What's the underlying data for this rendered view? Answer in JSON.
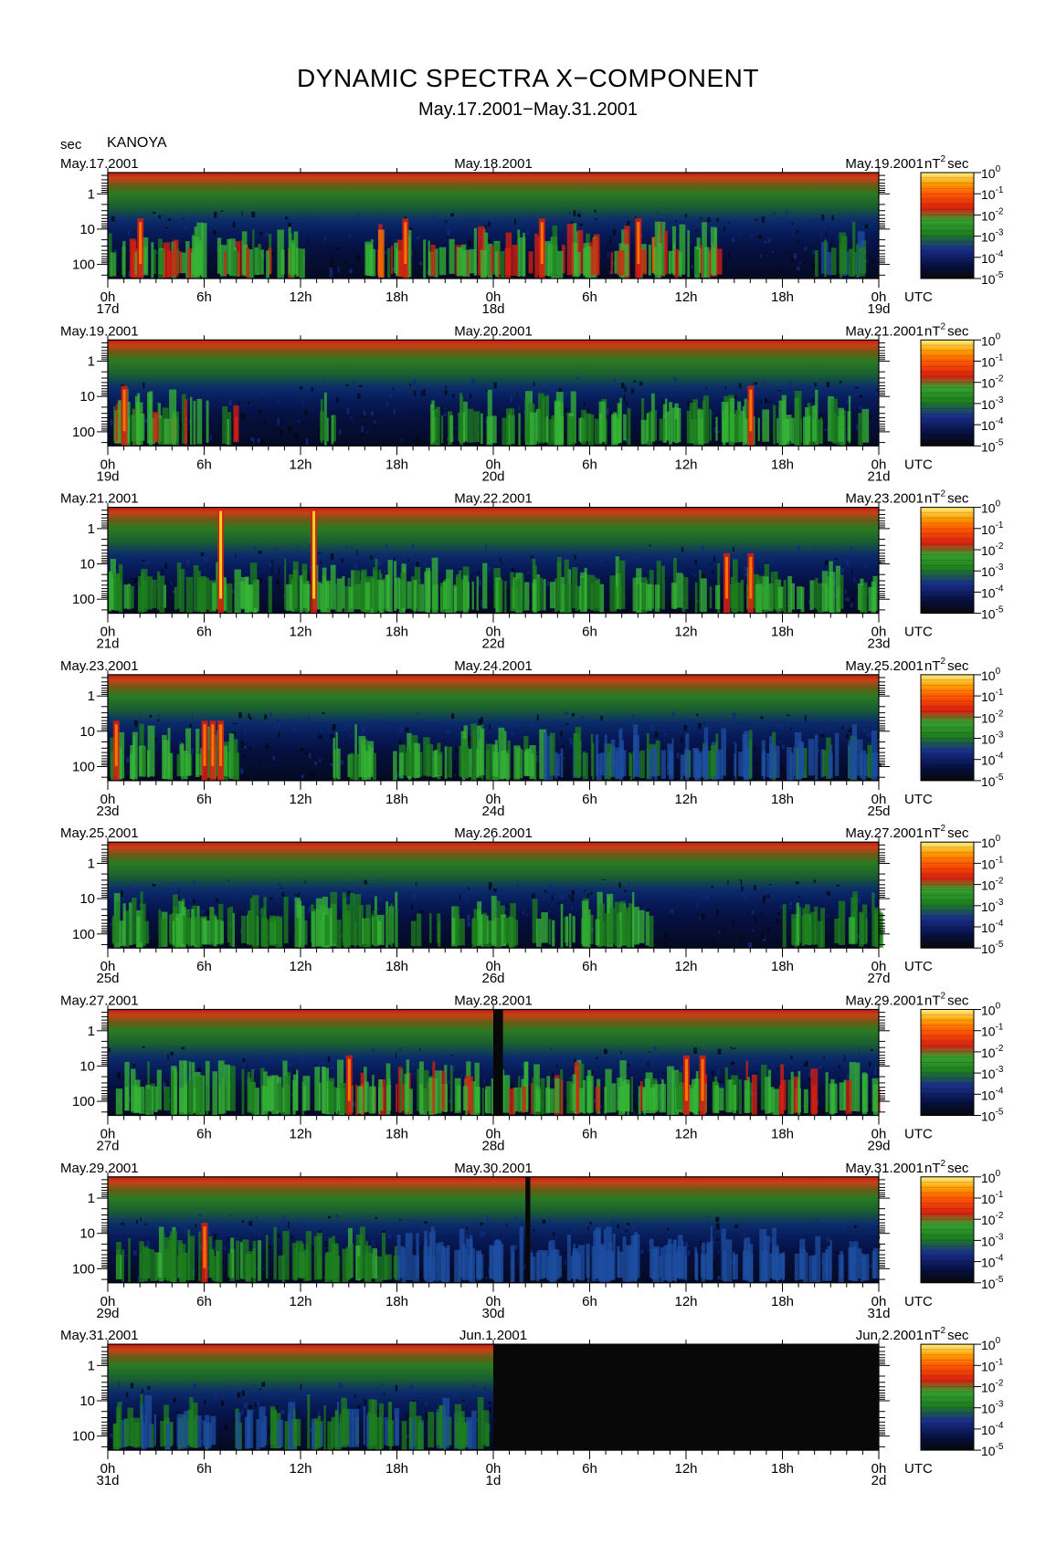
{
  "title": "DYNAMIC SPECTRA X−COMPONENT",
  "subtitle": "May.17.2001−May.31.2001",
  "unit_label": "sec",
  "station": "KANOYA",
  "y_tick_labels": [
    "1",
    "10",
    "100"
  ],
  "x_tick_labels": [
    "0h",
    "6h",
    "12h",
    "18h",
    "0h",
    "6h",
    "12h",
    "18h",
    "0h"
  ],
  "x_axis_unit": "UTC",
  "colorbar": {
    "unit_base": "nT",
    "unit_exp": "2",
    "unit_suffix": "sec",
    "tick_base": "10",
    "tick_exponents": [
      "0",
      "-1",
      "-2",
      "-3",
      "-4",
      "-5"
    ]
  },
  "colors": {
    "noise_black": "#080808",
    "deep_blue": "#07125a",
    "navy": "#061040",
    "green": "#1e7f1e",
    "bright_green": "#35b535",
    "red": "#d92010",
    "orange": "#ff7a00",
    "yellow": "#ffe020"
  },
  "chart_data": {
    "type": "heatmap",
    "x_unit": "UTC hours (2-day window per panel)",
    "y_unit": "period (sec), log scale, 0.25–250",
    "z_unit": "nT^2 sec, log scale 1e-5 to 1e0",
    "panels": [
      {
        "left_date": "May.17.2001",
        "mid_date": "May.18.2001",
        "right_date": "May.19.2001",
        "day_labels": [
          "17d",
          "18d",
          "19d"
        ],
        "activity": [
          [
            0,
            12,
            0.7
          ],
          [
            16,
            38,
            0.75
          ],
          [
            44,
            47,
            0.45
          ]
        ],
        "bursts": [
          [
            2.0,
            0.8
          ],
          [
            18.5,
            0.7
          ],
          [
            27.0,
            0.8
          ],
          [
            33.0,
            0.7
          ]
        ],
        "gaps": []
      },
      {
        "left_date": "May.19.2001",
        "mid_date": "May.20.2001",
        "right_date": "May.21.2001",
        "day_labels": [
          "19d",
          "20d",
          "21d"
        ],
        "activity": [
          [
            0,
            8,
            0.7
          ],
          [
            13,
            14,
            0.55
          ],
          [
            20,
            47,
            0.6
          ]
        ],
        "bursts": [
          [
            1.0,
            0.8
          ],
          [
            40.0,
            0.65
          ]
        ],
        "gaps": []
      },
      {
        "left_date": "May.21.2001",
        "mid_date": "May.22.2001",
        "right_date": "May.23.2001",
        "day_labels": [
          "21d",
          "22d",
          "23d"
        ],
        "activity": [
          [
            0,
            6,
            0.5
          ],
          [
            6,
            48,
            0.6
          ]
        ],
        "bursts": [
          [
            7.0,
            1.0
          ],
          [
            12.8,
            1.0
          ],
          [
            38.5,
            0.8
          ],
          [
            40.0,
            0.8
          ]
        ],
        "gaps": []
      },
      {
        "left_date": "May.23.2001",
        "mid_date": "May.24.2001",
        "right_date": "May.25.2001",
        "day_labels": [
          "23d",
          "24d",
          "25d"
        ],
        "activity": [
          [
            0,
            8,
            0.65
          ],
          [
            14,
            27,
            0.6
          ],
          [
            27,
            48,
            0.35
          ]
        ],
        "bursts": [
          [
            0.5,
            0.85
          ],
          [
            6.0,
            0.9
          ],
          [
            6.5,
            0.9
          ],
          [
            7.0,
            0.9
          ]
        ],
        "gaps": []
      },
      {
        "left_date": "May.25.2001",
        "mid_date": "May.26.2001",
        "right_date": "May.27.2001",
        "day_labels": [
          "25d",
          "26d",
          "27d"
        ],
        "activity": [
          [
            0,
            34,
            0.55
          ],
          [
            42,
            48,
            0.5
          ]
        ],
        "bursts": [],
        "gaps": []
      },
      {
        "left_date": "May.27.2001",
        "mid_date": "May.28.2001",
        "right_date": "May.29.2001",
        "day_labels": [
          "27d",
          "28d",
          "29d"
        ],
        "activity": [
          [
            0,
            14,
            0.6
          ],
          [
            14,
            48,
            0.7
          ]
        ],
        "bursts": [
          [
            15.0,
            0.8
          ],
          [
            36.0,
            0.8
          ],
          [
            37.0,
            0.8
          ]
        ],
        "gaps": [
          [
            24.0,
            24.6
          ]
        ]
      },
      {
        "left_date": "May.29.2001",
        "mid_date": "May.30.2001",
        "right_date": "May.31.2001",
        "day_labels": [
          "29d",
          "30d",
          "31d"
        ],
        "activity": [
          [
            0,
            18,
            0.5
          ],
          [
            18,
            48,
            0.3
          ]
        ],
        "bursts": [
          [
            6.0,
            0.7
          ]
        ],
        "gaps": [
          [
            26.0,
            26.3
          ]
        ]
      },
      {
        "left_date": "May.31.2001",
        "mid_date": "Jun.1.2001",
        "right_date": "Jun.2.2001",
        "day_labels": [
          "31d",
          "1d",
          "2d"
        ],
        "activity": [
          [
            0,
            24,
            0.4
          ]
        ],
        "bursts": [],
        "gaps": [
          [
            24.0,
            48.0
          ]
        ]
      }
    ]
  }
}
